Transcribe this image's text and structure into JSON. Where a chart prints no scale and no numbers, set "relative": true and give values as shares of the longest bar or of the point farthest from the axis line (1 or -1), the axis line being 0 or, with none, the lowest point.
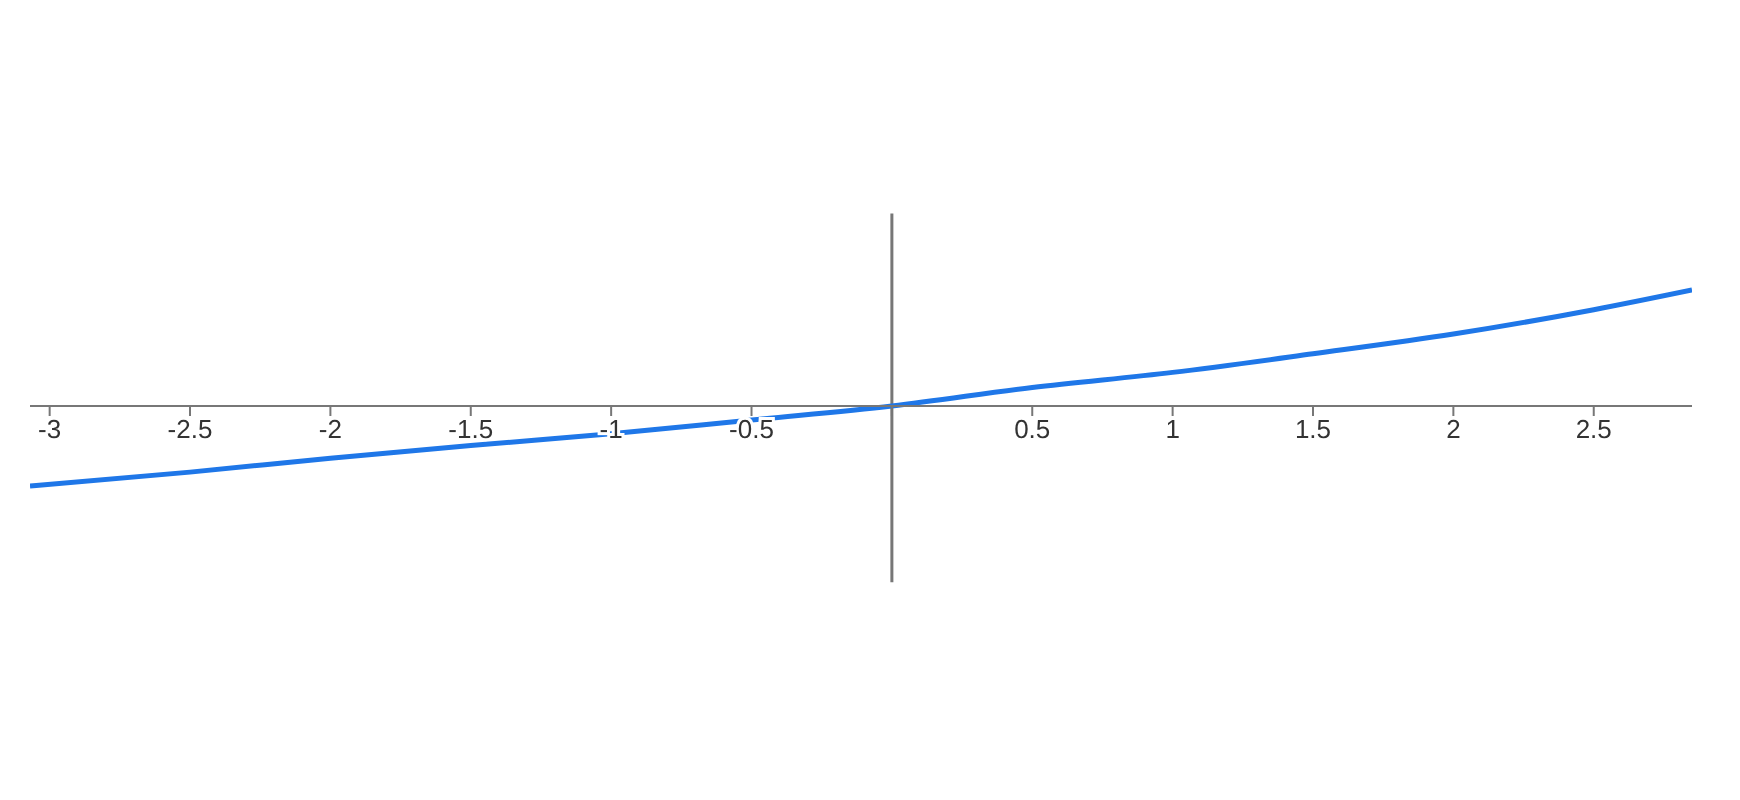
{
  "chart_data": {
    "type": "line",
    "relative": true,
    "x": [
      -3.07,
      -2.5,
      -2,
      -1.5,
      -1,
      -0.5,
      0,
      0.5,
      1,
      1.5,
      2,
      2.5,
      2.85
    ],
    "series": [
      {
        "color": "#1f77e8",
        "values": [
          -0.69,
          -0.57,
          -0.45,
          -0.34,
          -0.24,
          -0.12,
          0,
          0.16,
          0.29,
          0.45,
          0.62,
          0.83,
          1
        ]
      }
    ],
    "xlim": [
      -3.07,
      2.85
    ],
    "xticks": [
      -3,
      -2.5,
      -2,
      -1.5,
      -1,
      -0.5,
      {
        "value": 0,
        "label": null
      },
      0.5,
      1,
      1.5,
      2,
      2.5
    ],
    "tick_labels": "x",
    "marker": "none",
    "line_style": "solid"
  }
}
